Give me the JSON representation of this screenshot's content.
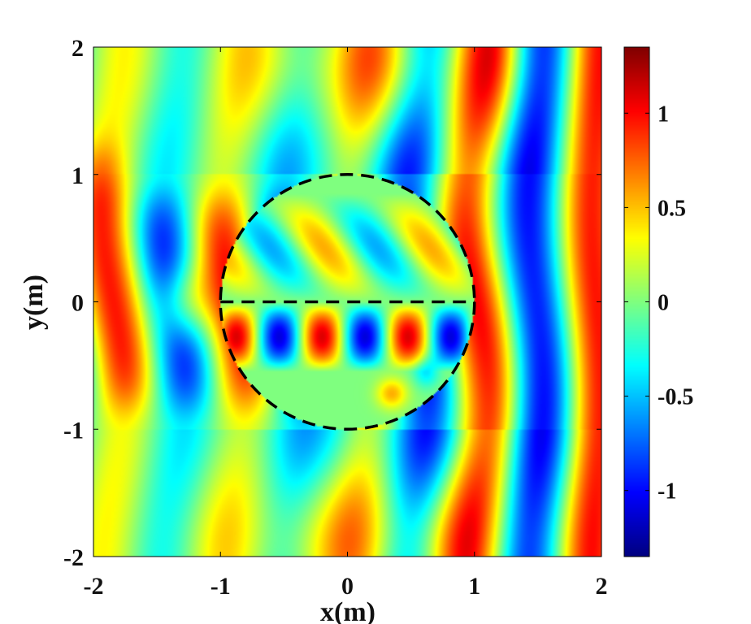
{
  "chart_data": {
    "type": "heatmap",
    "title": "",
    "xlabel": "x(m)",
    "ylabel": "y(m)",
    "xlim": [
      -2,
      2
    ],
    "ylim": [
      -2,
      2
    ],
    "x_ticks": [
      -2,
      -1,
      0,
      1,
      2
    ],
    "y_ticks": [
      -2,
      -1,
      0,
      1,
      2
    ],
    "x_tick_labels": [
      "-2",
      "-1",
      "0",
      "1",
      "2"
    ],
    "y_tick_labels": [
      "-2",
      "-1",
      "0",
      "1",
      "2"
    ],
    "colormap": "jet",
    "color_range": [
      -1.35,
      1.35
    ],
    "colorbar": {
      "ticks": [
        1,
        0.5,
        0,
        -0.5,
        -1
      ],
      "tick_labels": [
        "1",
        "0.5",
        "0",
        "-0.5",
        "-1"
      ],
      "placement": "right"
    },
    "field_description_features": {
      "wave_wavenumber_per_m": 6.6,
      "dominant_propagation": "along x",
      "scatterer_region": "circle of radius 1 m centered at (0, 0)"
    },
    "annotations": [
      {
        "type": "dashed-circle",
        "center": [
          0,
          0
        ],
        "radius": 1,
        "color": "#000000"
      },
      {
        "type": "dashed-line",
        "from": [
          -1,
          0
        ],
        "to": [
          1,
          0
        ],
        "color": "#000000"
      }
    ],
    "grid": false
  }
}
